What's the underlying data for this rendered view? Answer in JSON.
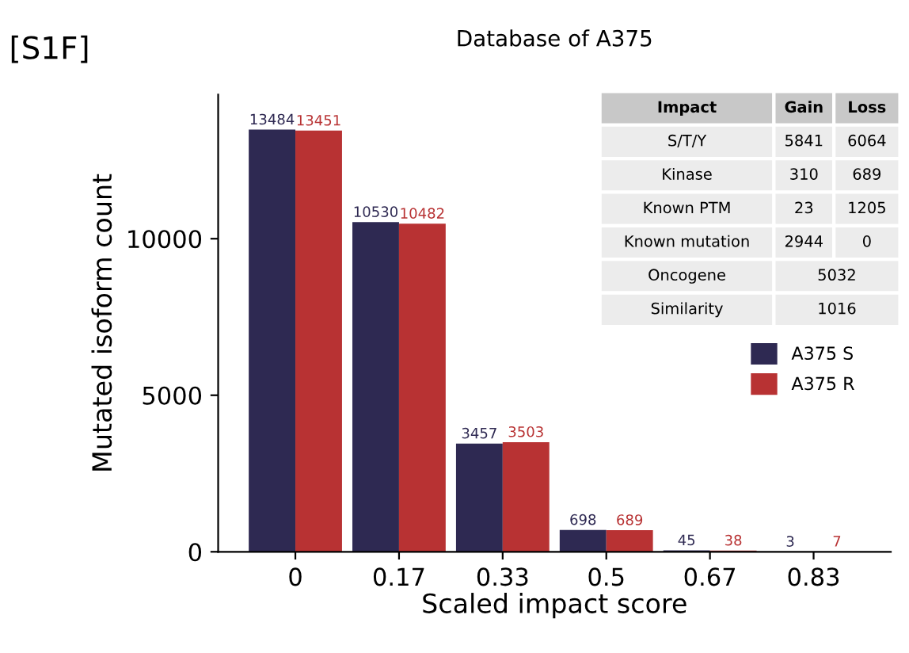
{
  "chart_data": {
    "type": "bar",
    "title": "Database of A375",
    "xlabel": "Scaled impact score",
    "ylabel": "Mutated isoform count",
    "categories": [
      "0",
      "0.17",
      "0.33",
      "0.5",
      "0.67",
      "0.83"
    ],
    "series": [
      {
        "name": "A375 S",
        "color": "#2e2952",
        "values": [
          13484,
          10530,
          3457,
          698,
          45,
          3
        ]
      },
      {
        "name": "A375 R",
        "color": "#b83233",
        "values": [
          13451,
          10482,
          3503,
          689,
          38,
          7
        ]
      }
    ],
    "ylim": [
      0,
      14600
    ],
    "yticks": [
      0,
      5000,
      10000
    ],
    "grid": false,
    "legend": "right",
    "data_labels": true,
    "annotations": [
      "[S1F]",
      "Impact",
      "Gain",
      "Loss",
      "S/T/Y",
      "5841",
      "6064",
      "Kinase",
      "310",
      "689",
      "Known PTM",
      "23",
      "1205",
      "Known mutation",
      "2944",
      "0",
      "Oncogene",
      "5032",
      "Similarity",
      "1016"
    ]
  }
}
